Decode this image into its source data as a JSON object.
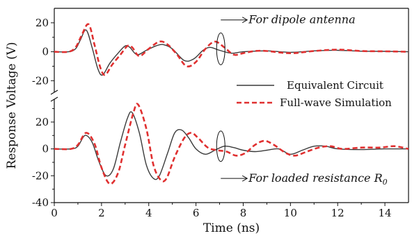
{
  "chart_data": {
    "type": "line",
    "xlabel": "Time (ns)",
    "ylabel": "Response Voltage (V)",
    "xlim": [
      0,
      15
    ],
    "x_ticks": [
      "0",
      "2",
      "4",
      "6",
      "8",
      "10",
      "12",
      "14"
    ],
    "grid": false,
    "legend_position": "center-right",
    "panels": [
      {
        "name": "dipole",
        "ylim": [
          -28,
          30
        ],
        "y_ticks": [
          "20",
          "0",
          "-20"
        ],
        "annotation": "For dipole antenna",
        "series": [
          {
            "name": "Equivalent Circuit",
            "color": "#3a3a3a",
            "style": "solid",
            "x": [
              0,
              0.6,
              0.9,
              1.1,
              1.35,
              1.6,
              1.85,
              2.05,
              2.35,
              2.7,
              3.0,
              3.2,
              3.5,
              3.9,
              4.3,
              4.6,
              5.0,
              5.5,
              5.9,
              6.3,
              6.6,
              7.0,
              7.5,
              8.0,
              9.0,
              10.0,
              11.0,
              12.0,
              13.0,
              14.0,
              15.0
            ],
            "y": [
              0,
              0,
              2,
              8,
              15,
              3,
              -12,
              -16,
              -8,
              -1,
              4,
              3,
              -2,
              1,
              4,
              5,
              2,
              -6,
              -5,
              1,
              3,
              1,
              -1,
              0,
              0.6,
              -0.4,
              0.6,
              1,
              0.4,
              0.3,
              0
            ]
          },
          {
            "name": "Full-wave Simulation",
            "color": "#e03030",
            "style": "dashed",
            "x": [
              0,
              0.6,
              0.9,
              1.15,
              1.45,
              1.7,
              1.95,
              2.15,
              2.45,
              2.8,
              3.1,
              3.3,
              3.6,
              4.0,
              4.45,
              4.8,
              5.2,
              5.6,
              6.0,
              6.4,
              6.8,
              7.2,
              7.6,
              8.0,
              8.5,
              9.0,
              10.0,
              11.0,
              12.0,
              13.0,
              14.0,
              15.0
            ],
            "y": [
              0,
              0,
              3,
              11,
              19,
              5,
              -11,
              -16,
              -9,
              -2,
              4,
              3,
              -3,
              2,
              7,
              5,
              -2,
              -10,
              -7,
              2,
              7,
              3,
              -2,
              -1,
              0.5,
              0.5,
              -1,
              0.5,
              1.5,
              0.5,
              0.3,
              0
            ]
          }
        ]
      },
      {
        "name": "loaded",
        "ylim": [
          -40,
          37
        ],
        "y_ticks": [
          "20",
          "0",
          "-20",
          "-40"
        ],
        "annotation_prefix": "For loaded resistance ",
        "annotation_symbol": "R",
        "annotation_sub": "0",
        "series": [
          {
            "name": "Equivalent Circuit",
            "color": "#3a3a3a",
            "style": "solid",
            "x": [
              0,
              0.7,
              1.0,
              1.3,
              1.6,
              1.9,
              2.2,
              2.5,
              2.8,
              3.1,
              3.3,
              3.6,
              3.9,
              4.2,
              4.45,
              4.8,
              5.1,
              5.4,
              5.7,
              6.0,
              6.4,
              6.8,
              7.2,
              7.6,
              8.0,
              8.5,
              9.0,
              9.5,
              10.0,
              10.5,
              11.0,
              11.5,
              12.0,
              13.0,
              14.0,
              15.0
            ],
            "y": [
              0,
              0,
              2,
              10,
              5,
              -10,
              -20,
              -15,
              5,
              23,
              27,
              12,
              -12,
              -22,
              -20,
              -3,
              12,
              14,
              8,
              0,
              -4,
              -1,
              2,
              1,
              -1,
              -2,
              -1,
              0,
              -4,
              -1,
              2,
              2,
              0,
              -0.5,
              0,
              0
            ]
          },
          {
            "name": "Full-wave Simulation",
            "color": "#e03030",
            "style": "dashed",
            "x": [
              0,
              0.7,
              1.0,
              1.35,
              1.7,
              2.0,
              2.35,
              2.7,
              3.0,
              3.35,
              3.55,
              3.9,
              4.2,
              4.5,
              4.75,
              5.1,
              5.5,
              5.8,
              6.1,
              6.5,
              6.9,
              7.3,
              7.7,
              8.1,
              8.5,
              8.9,
              9.3,
              9.8,
              10.2,
              10.7,
              11.2,
              11.7,
              12.2,
              13.0,
              13.8,
              14.4,
              15.0
            ],
            "y": [
              0,
              0,
              3,
              12,
              4,
              -14,
              -26,
              -18,
              3,
              27,
              33,
              15,
              -12,
              -23,
              -22,
              -6,
              8,
              12,
              8,
              1,
              -1,
              -2,
              -5,
              -3,
              3,
              6,
              3,
              -3,
              -5,
              -2,
              1,
              2,
              0,
              1,
              1,
              2,
              0
            ]
          }
        ]
      }
    ]
  }
}
